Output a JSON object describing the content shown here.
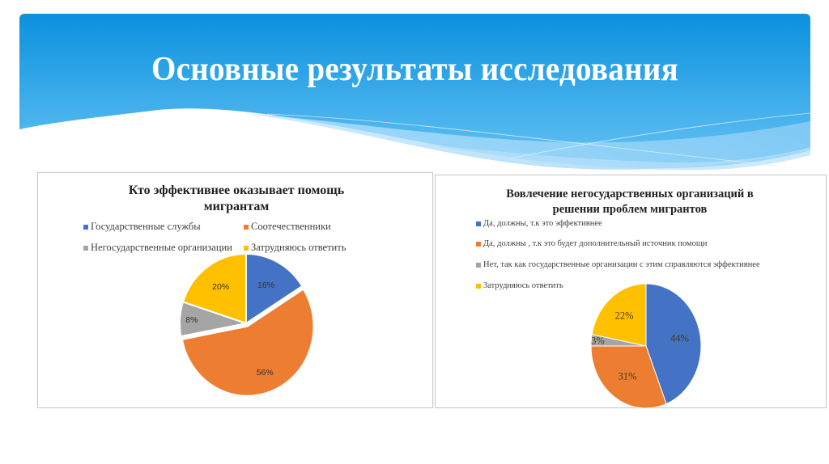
{
  "slide": {
    "title": "Основные результаты исследования",
    "header_colors": {
      "top": "#0d93e0",
      "bottom": "#5cbdf2",
      "wave_light": "#9ed7f8"
    }
  },
  "chart_data": [
    {
      "type": "pie",
      "title": "Кто эффективнее оказывает помощь мигрантам",
      "categories": [
        "Государственные службы",
        "Соотечественники",
        "Негосударственные организации",
        "Затрудняюсь ответить"
      ],
      "values": [
        16,
        56,
        8,
        20
      ],
      "labels": [
        "16%",
        "56%",
        "8%",
        "20%"
      ],
      "colors": [
        "#4472c4",
        "#ed7d31",
        "#a5a5a5",
        "#ffc000"
      ],
      "exploded": [
        false,
        true,
        false,
        false
      ],
      "legend_position": "top",
      "start_angle_deg": 0,
      "direction": "clockwise"
    },
    {
      "type": "pie",
      "title": "Вовлечение негосударственных организаций в решении проблем мигрантов",
      "categories": [
        "Да, должны, т.к это эффективнее",
        "Да, должны , т.к это будет дополнительный источник помощи",
        "Нет, так как государственные организации с этим справляются эффективнее",
        "Затрудняюсь ответить"
      ],
      "values": [
        44,
        31,
        3,
        22
      ],
      "labels": [
        "44%",
        "31%",
        "3%",
        "22%"
      ],
      "colors": [
        "#4472c4",
        "#ed7d31",
        "#a5a5a5",
        "#ffc000"
      ],
      "legend_position": "top-left",
      "start_angle_deg": 0,
      "direction": "clockwise"
    }
  ],
  "charts": {
    "left": {
      "title_line1": "Кто эффективнее оказывает помощь",
      "title_line2": "мигрантам",
      "legend": [
        {
          "label": "Государственные службы",
          "color": "#4472c4"
        },
        {
          "label": "Соотечественники",
          "color": "#ed7d31"
        },
        {
          "label": "Негосударственные организации",
          "color": "#a5a5a5"
        },
        {
          "label": "Затрудняюсь ответить",
          "color": "#ffc000"
        }
      ]
    },
    "right": {
      "title_line1": "Вовлечение негосударственных организаций в",
      "title_line2": "решении проблем мигрантов",
      "legend": [
        {
          "label": "Да, должны, т.к это эффективнее",
          "color": "#4472c4"
        },
        {
          "label": "Да, должны , т.к это будет дополнительный источник помощи",
          "color": "#ed7d31"
        },
        {
          "label": "Нет, так как государственные организации с этим справляются эффективнее",
          "color": "#a5a5a5"
        },
        {
          "label": "Затрудняюсь ответить",
          "color": "#ffc000"
        }
      ]
    }
  }
}
